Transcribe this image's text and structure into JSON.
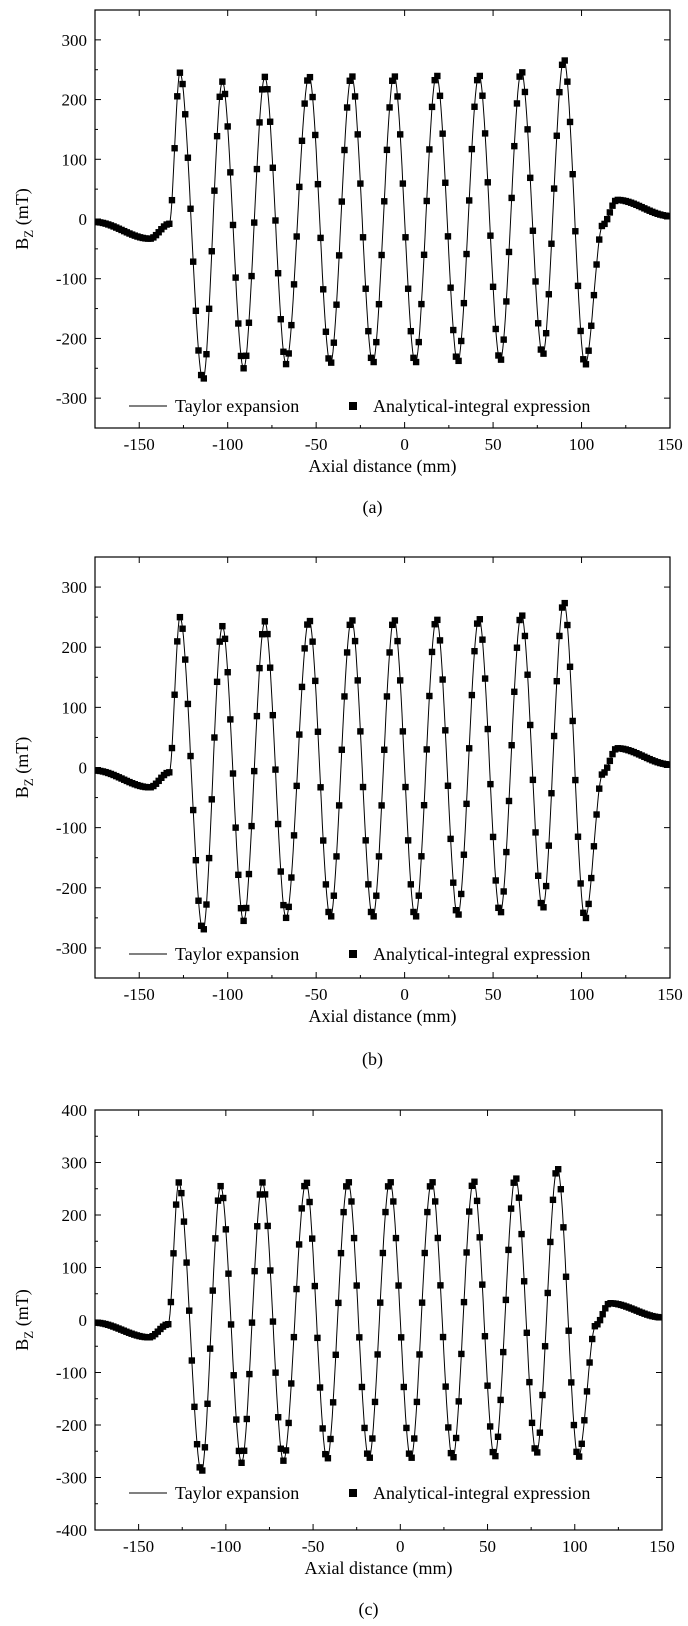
{
  "chart_data": [
    {
      "type": "scatter",
      "panel_label": "(a)",
      "xlabel": "Axial distance (mm)",
      "ylabel_main": "B",
      "ylabel_sub": "Z",
      "ylabel_unit": " (mT)",
      "xlim": [
        -175,
        150
      ],
      "ylim": [
        -350,
        350
      ],
      "xticks": [
        -150,
        -100,
        -50,
        0,
        50,
        100,
        150
      ],
      "yticks": [
        -300,
        -200,
        -100,
        0,
        100,
        200,
        300
      ],
      "legend_position": "bottom",
      "grid": false,
      "series": [
        {
          "name": "Taylor expansion",
          "style": "line"
        },
        {
          "name": "Analytical-integral expression",
          "style": "square-markers"
        }
      ],
      "peaks": [
        {
          "x": -127,
          "y": 245
        },
        {
          "x": -114,
          "y": -270
        },
        {
          "x": -103,
          "y": 230
        },
        {
          "x": -91,
          "y": -250
        },
        {
          "x": -79,
          "y": 238
        },
        {
          "x": -67,
          "y": -243
        },
        {
          "x": -54,
          "y": 240
        },
        {
          "x": -42,
          "y": -243
        },
        {
          "x": -30,
          "y": 241
        },
        {
          "x": -18,
          "y": -242
        },
        {
          "x": -6,
          "y": 241
        },
        {
          "x": 6,
          "y": -242
        },
        {
          "x": 18,
          "y": 242
        },
        {
          "x": 30,
          "y": -240
        },
        {
          "x": 42,
          "y": 242
        },
        {
          "x": 54,
          "y": -238
        },
        {
          "x": 66,
          "y": 248
        },
        {
          "x": 78,
          "y": -228
        },
        {
          "x": 90,
          "y": 268
        },
        {
          "x": 102,
          "y": -245
        }
      ],
      "tails": {
        "left_x": -175,
        "left_y": -5,
        "left_min_x": -144,
        "left_min_y": -33,
        "right_peak_x": 120,
        "right_peak_y": 32,
        "right_x": 150,
        "right_y": 5
      }
    },
    {
      "type": "scatter",
      "panel_label": "(b)",
      "xlabel": "Axial distance (mm)",
      "ylabel_main": "B",
      "ylabel_sub": "Z",
      "ylabel_unit": " (mT)",
      "xlim": [
        -175,
        150
      ],
      "ylim": [
        -350,
        350
      ],
      "xticks": [
        -150,
        -100,
        -50,
        0,
        50,
        100,
        150
      ],
      "yticks": [
        -300,
        -200,
        -100,
        0,
        100,
        200,
        300
      ],
      "legend_position": "bottom",
      "grid": false,
      "series": [
        {
          "name": "Taylor expansion",
          "style": "line"
        },
        {
          "name": "Analytical-integral expression",
          "style": "square-markers"
        }
      ],
      "peaks": [
        {
          "x": -127,
          "y": 250
        },
        {
          "x": -114,
          "y": -272
        },
        {
          "x": -103,
          "y": 235
        },
        {
          "x": -91,
          "y": -255
        },
        {
          "x": -79,
          "y": 243
        },
        {
          "x": -67,
          "y": -250
        },
        {
          "x": -54,
          "y": 246
        },
        {
          "x": -42,
          "y": -250
        },
        {
          "x": -30,
          "y": 247
        },
        {
          "x": -18,
          "y": -250
        },
        {
          "x": -6,
          "y": 247
        },
        {
          "x": 6,
          "y": -250
        },
        {
          "x": 18,
          "y": 248
        },
        {
          "x": 30,
          "y": -247
        },
        {
          "x": 42,
          "y": 249
        },
        {
          "x": 54,
          "y": -243
        },
        {
          "x": 66,
          "y": 255
        },
        {
          "x": 78,
          "y": -235
        },
        {
          "x": 90,
          "y": 276
        },
        {
          "x": 102,
          "y": -252
        }
      ],
      "tails": {
        "left_x": -175,
        "left_y": -5,
        "left_min_x": -144,
        "left_min_y": -33,
        "right_peak_x": 120,
        "right_peak_y": 32,
        "right_x": 150,
        "right_y": 5
      }
    },
    {
      "type": "scatter",
      "panel_label": "(c)",
      "xlabel": "Axial distance (mm)",
      "ylabel_main": "B",
      "ylabel_sub": "Z",
      "ylabel_unit": " (mT)",
      "xlim": [
        -175,
        150
      ],
      "ylim": [
        -400,
        400
      ],
      "xticks": [
        -150,
        -100,
        -50,
        0,
        50,
        100,
        150
      ],
      "yticks": [
        -400,
        -300,
        -200,
        -100,
        0,
        100,
        200,
        300,
        400
      ],
      "legend_position": "bottom",
      "grid": false,
      "series": [
        {
          "name": "Taylor expansion",
          "style": "line"
        },
        {
          "name": "Analytical-integral expression",
          "style": "square-markers"
        }
      ],
      "peaks": [
        {
          "x": -127,
          "y": 262
        },
        {
          "x": -114,
          "y": -290
        },
        {
          "x": -103,
          "y": 255
        },
        {
          "x": -91,
          "y": -272
        },
        {
          "x": -79,
          "y": 262
        },
        {
          "x": -67,
          "y": -268
        },
        {
          "x": -54,
          "y": 264
        },
        {
          "x": -42,
          "y": -266
        },
        {
          "x": -30,
          "y": 265
        },
        {
          "x": -18,
          "y": -265
        },
        {
          "x": -6,
          "y": 265
        },
        {
          "x": 6,
          "y": -265
        },
        {
          "x": 18,
          "y": 265
        },
        {
          "x": 30,
          "y": -264
        },
        {
          "x": 42,
          "y": 266
        },
        {
          "x": 54,
          "y": -262
        },
        {
          "x": 66,
          "y": 272
        },
        {
          "x": 78,
          "y": -255
        },
        {
          "x": 90,
          "y": 290
        },
        {
          "x": 102,
          "y": -262
        }
      ],
      "tails": {
        "left_x": -175,
        "left_y": -5,
        "left_min_x": -144,
        "left_min_y": -33,
        "right_peak_x": 120,
        "right_peak_y": 32,
        "right_x": 150,
        "right_y": 5
      }
    }
  ]
}
